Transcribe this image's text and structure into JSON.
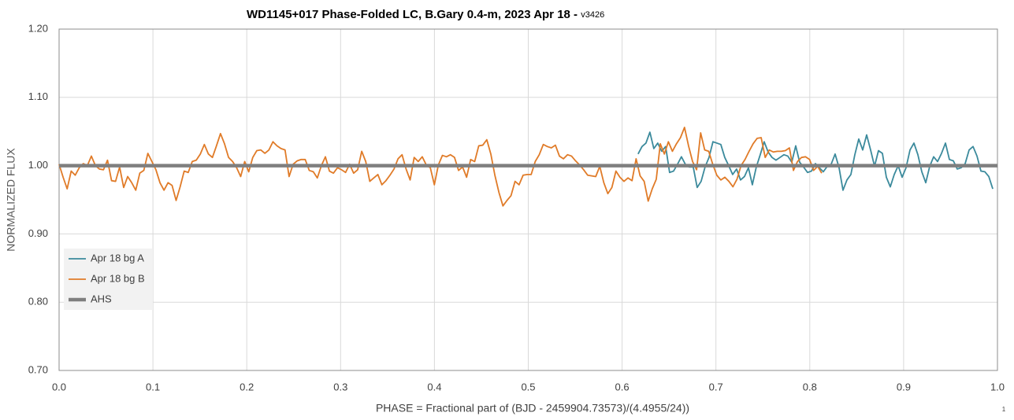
{
  "chart_data": {
    "type": "line",
    "title": "WD1145+017 Phase-Folded LC, B.Gary 0.4-m, 2023 Apr 18 - ",
    "subtitle": "v3426",
    "x_label": "PHASE = Fractional part of (BJD - 2459904.73573)/(4.4955/24))",
    "y_label": "NORMALIZED FLUX",
    "page_number": "1",
    "xlim": [
      0,
      1
    ],
    "ylim": [
      0.7,
      1.2
    ],
    "xticks": [
      {
        "value": 0,
        "label": "0.0"
      },
      0.1,
      0.2,
      0.3,
      0.4,
      0.5,
      0.6,
      0.7,
      0.8,
      0.9,
      {
        "value": 1,
        "label": "1.0"
      }
    ],
    "yticks": [
      {
        "value": 0.7,
        "label": "0.70"
      },
      {
        "value": 0.8,
        "label": "0.80"
      },
      {
        "value": 0.9,
        "label": "0.90"
      },
      {
        "value": 1.0,
        "label": "1.00"
      },
      {
        "value": 1.1,
        "label": "1.10"
      },
      {
        "value": 1.2,
        "label": "1.20"
      }
    ],
    "grid": true,
    "legend": "lower left",
    "series": [
      {
        "name": "Apr 18 bg A",
        "color": "#3b8a9c",
        "width": 1.8,
        "x": [
          0.617,
          0.6212,
          0.6254,
          0.6296,
          0.6338,
          0.638,
          0.6422,
          0.6464,
          0.6506,
          0.6548,
          0.659,
          0.6632,
          0.6674,
          0.6716,
          0.6758,
          0.68,
          0.6842,
          0.6884,
          0.6926,
          0.6968,
          0.701,
          0.7052,
          0.7094,
          0.7136,
          0.7178,
          0.722,
          0.7262,
          0.7304,
          0.7346,
          0.7388,
          0.743,
          0.7472,
          0.7514,
          0.7556,
          0.7598,
          0.764,
          0.7682,
          0.7724,
          0.7766,
          0.7808,
          0.785,
          0.7892,
          0.7934,
          0.7976,
          0.8018,
          0.806,
          0.8102,
          0.8144,
          0.8186,
          0.8228,
          0.827,
          0.8312,
          0.8354,
          0.8396,
          0.8438,
          0.848,
          0.8522,
          0.8564,
          0.8606,
          0.8648,
          0.869,
          0.8732,
          0.8774,
          0.8816,
          0.8858,
          0.89,
          0.8942,
          0.8984,
          0.9026,
          0.9068,
          0.911,
          0.9152,
          0.9194,
          0.9236,
          0.9278,
          0.932,
          0.9362,
          0.9404,
          0.9446,
          0.9488,
          0.953,
          0.9572,
          0.9614,
          0.9656,
          0.9698,
          0.974,
          0.9782,
          0.9824,
          0.9866,
          0.9908,
          0.995
        ],
        "values": [
          1.017,
          1.028,
          1.033,
          1.049,
          1.025,
          1.033,
          1.021,
          1.028,
          0.99,
          0.992,
          1.002,
          1.013,
          1.002,
          0.998,
          0.998,
          0.968,
          0.977,
          0.998,
          1.012,
          1.035,
          1.033,
          1.031,
          1.012,
          1.0,
          0.987,
          0.995,
          0.979,
          0.984,
          0.997,
          0.972,
          0.998,
          1.016,
          1.035,
          1.02,
          1.012,
          1.008,
          1.012,
          1.016,
          1.014,
          1.005,
          1.029,
          1.005,
          0.998,
          0.99,
          0.992,
          1.003,
          0.997,
          0.991,
          0.999,
          1.002,
          1.017,
          0.997,
          0.964,
          0.979,
          0.987,
          1.016,
          1.039,
          1.023,
          1.045,
          1.023,
          0.999,
          1.022,
          1.018,
          0.983,
          0.969,
          0.987,
          1.0,
          0.983,
          0.997,
          1.023,
          1.033,
          1.016,
          0.991,
          0.975,
          0.999,
          1.013,
          1.006,
          1.018,
          1.033,
          1.009,
          1.007,
          0.995,
          0.997,
          1.003,
          1.023,
          1.028,
          1.014,
          0.992,
          0.991,
          0.984,
          0.966
        ]
      },
      {
        "name": "Apr 18 bg B",
        "color": "#e07b28",
        "width": 1.8,
        "x": [
          0,
          0.0043,
          0.0086,
          0.0129,
          0.0172,
          0.0215,
          0.0258,
          0.0301,
          0.0344,
          0.0387,
          0.043,
          0.0473,
          0.0516,
          0.0559,
          0.0602,
          0.0645,
          0.0688,
          0.0731,
          0.0774,
          0.0817,
          0.086,
          0.0903,
          0.0946,
          0.0989,
          0.1032,
          0.1075,
          0.1118,
          0.1161,
          0.1204,
          0.1247,
          0.129,
          0.1333,
          0.1376,
          0.1419,
          0.1462,
          0.1505,
          0.1548,
          0.1591,
          0.1634,
          0.1677,
          0.172,
          0.1763,
          0.1806,
          0.1849,
          0.1892,
          0.1935,
          0.1978,
          0.2021,
          0.2064,
          0.2107,
          0.215,
          0.2193,
          0.2236,
          0.2279,
          0.2322,
          0.2365,
          0.2408,
          0.2451,
          0.2494,
          0.2537,
          0.258,
          0.2623,
          0.2666,
          0.2709,
          0.2752,
          0.2795,
          0.2838,
          0.2881,
          0.2924,
          0.2967,
          0.301,
          0.3053,
          0.3096,
          0.3139,
          0.3182,
          0.3225,
          0.3268,
          0.3311,
          0.3354,
          0.3397,
          0.344,
          0.3483,
          0.3526,
          0.3569,
          0.3612,
          0.3655,
          0.3698,
          0.3741,
          0.3784,
          0.3827,
          0.387,
          0.3913,
          0.3956,
          0.3999,
          0.4042,
          0.4085,
          0.4128,
          0.4171,
          0.4214,
          0.4257,
          0.43,
          0.4343,
          0.4386,
          0.4429,
          0.4472,
          0.4515,
          0.4558,
          0.4601,
          0.4644,
          0.4687,
          0.473,
          0.4773,
          0.4816,
          0.4859,
          0.4902,
          0.4945,
          0.4988,
          0.5031,
          0.5074,
          0.5117,
          0.516,
          0.5203,
          0.5246,
          0.5289,
          0.5332,
          0.5375,
          0.5418,
          0.5461,
          0.5504,
          0.5547,
          0.559,
          0.5633,
          0.5676,
          0.5719,
          0.5762,
          0.5805,
          0.5848,
          0.5891,
          0.5934,
          0.5977,
          0.602,
          0.6063,
          0.6106,
          0.6149,
          0.6192,
          0.6235,
          0.6278,
          0.6321,
          0.6364,
          0.6407,
          0.645,
          0.6493,
          0.6536,
          0.6579,
          0.6622,
          0.6665,
          0.6708,
          0.6751,
          0.6794,
          0.6837,
          0.688,
          0.6923,
          0.6966,
          0.7009,
          0.7052,
          0.7095,
          0.7138,
          0.7181,
          0.7224,
          0.7267,
          0.731,
          0.7353,
          0.7396,
          0.7439,
          0.7482,
          0.7525,
          0.7568,
          0.7611,
          0.7654,
          0.7697,
          0.774,
          0.7783,
          0.7826,
          0.7869,
          0.7912,
          0.7955,
          0.7998,
          0.8041,
          0.8084,
          0.8127
        ],
        "values": [
          1.002,
          0.983,
          0.966,
          0.992,
          0.986,
          0.997,
          1.003,
          1.0,
          1.014,
          1.0,
          0.995,
          0.994,
          1.008,
          0.978,
          0.977,
          0.998,
          0.968,
          0.984,
          0.975,
          0.964,
          0.989,
          0.993,
          1.018,
          1.006,
          0.994,
          0.975,
          0.964,
          0.975,
          0.971,
          0.949,
          0.969,
          0.992,
          0.99,
          1.006,
          1.008,
          1.017,
          1.031,
          1.017,
          1.012,
          1.029,
          1.047,
          1.032,
          1.012,
          1.006,
          0.997,
          0.984,
          1.006,
          0.991,
          1.012,
          1.022,
          1.023,
          1.018,
          1.023,
          1.035,
          1.029,
          1.025,
          1.023,
          0.984,
          1.002,
          1.007,
          1.009,
          1.009,
          0.993,
          0.991,
          0.982,
          1.0,
          1.013,
          0.992,
          0.989,
          0.997,
          0.994,
          0.99,
          1.002,
          0.989,
          0.994,
          1.021,
          1.006,
          0.977,
          0.982,
          0.987,
          0.972,
          0.978,
          0.986,
          0.995,
          1.01,
          1.016,
          0.995,
          0.979,
          1.012,
          1.006,
          1.013,
          1.001,
          0.997,
          0.972,
          1.001,
          1.015,
          1.013,
          1.016,
          1.012,
          0.993,
          0.998,
          0.983,
          1.009,
          1.006,
          1.029,
          1.03,
          1.038,
          1.017,
          0.986,
          0.961,
          0.941,
          0.949,
          0.956,
          0.977,
          0.972,
          0.986,
          0.987,
          0.987,
          1.006,
          1.016,
          1.031,
          1.028,
          1.026,
          1.03,
          1.014,
          1.01,
          1.016,
          1.014,
          1.007,
          1.001,
          0.994,
          0.986,
          0.985,
          0.984,
          0.999,
          0.975,
          0.959,
          0.968,
          0.992,
          0.983,
          0.977,
          0.982,
          0.978,
          1.01,
          0.985,
          0.977,
          0.948,
          0.966,
          0.98,
          1.032,
          1.017,
          1.035,
          1.021,
          1.032,
          1.041,
          1.056,
          1.029,
          1.006,
          0.994,
          1.048,
          1.023,
          1.021,
          1.002,
          0.986,
          0.979,
          0.983,
          0.977,
          0.969,
          0.98,
          1.0,
          1.009,
          1.021,
          1.032,
          1.04,
          1.041,
          1.012,
          1.023,
          1.02,
          1.021,
          1.021,
          1.022,
          1.026,
          0.993,
          1.006,
          1.012,
          1.013,
          1.009,
          0.993,
          0.999,
          0.989
        ]
      },
      {
        "name": "AHS",
        "color": "#7f7f7f",
        "width": 4.5,
        "x": [
          0,
          1
        ],
        "values": [
          1.0,
          1.0
        ]
      }
    ]
  }
}
